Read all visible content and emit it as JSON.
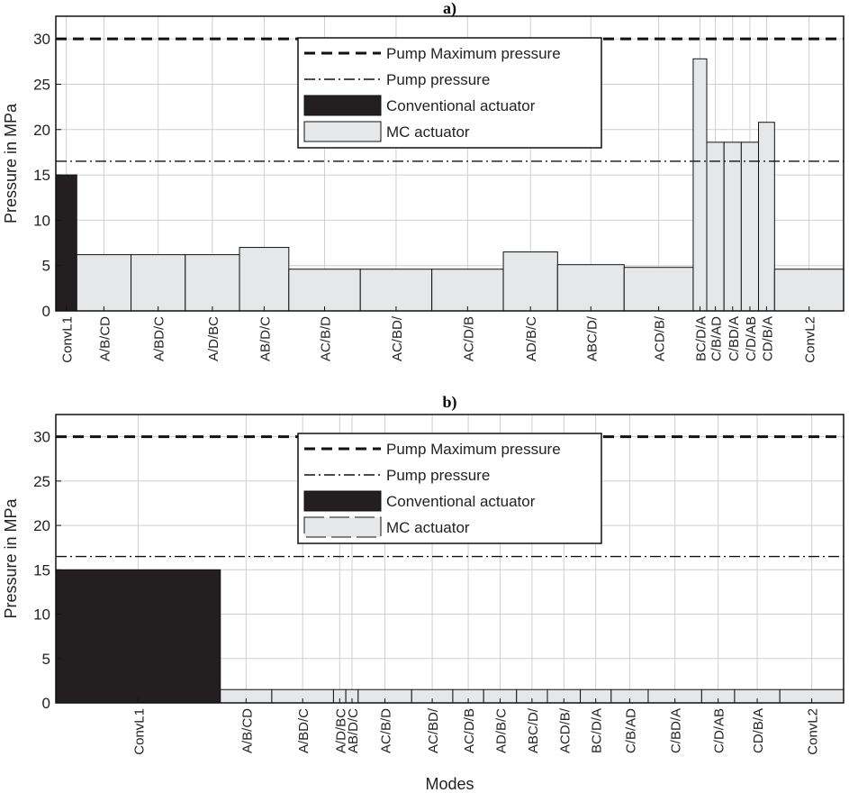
{
  "chart_data": [
    {
      "type": "bar",
      "title": "a)",
      "xlabel": "",
      "ylabel": "Pressure in MPa",
      "ylim": [
        0,
        32.5
      ],
      "yticks": [
        0,
        5,
        10,
        15,
        20,
        25,
        30
      ],
      "grid": true,
      "legend_position": "top-center",
      "reference_lines": [
        {
          "name": "Pump Maximum pressure",
          "value": 30,
          "style": "dashed"
        },
        {
          "name": "Pump pressure",
          "value": 16.5,
          "style": "dash-dot"
        }
      ],
      "legend": [
        "Pump Maximum pressure",
        "Pump pressure",
        "Conventional actuator",
        "MC actuator"
      ],
      "series": [
        {
          "name": "Conventional actuator",
          "color": "#231f20"
        },
        {
          "name": "MC actuator",
          "color": "#e6e7e8"
        }
      ],
      "bars": [
        {
          "label": "ConvL1",
          "value": 15.0,
          "width": 0.85,
          "series": "Conventional actuator"
        },
        {
          "label": "A/B/CD",
          "value": 6.2,
          "width": 2.2,
          "series": "MC actuator"
        },
        {
          "label": "A/BD/C",
          "value": 6.2,
          "width": 2.2,
          "series": "MC actuator"
        },
        {
          "label": "A/D/BC",
          "value": 6.2,
          "width": 2.2,
          "series": "MC actuator"
        },
        {
          "label": "AB/D/C",
          "value": 7.0,
          "width": 2.0,
          "series": "MC actuator"
        },
        {
          "label": "AC/B/D",
          "value": 4.6,
          "width": 2.9,
          "series": "MC actuator"
        },
        {
          "label": "AC/BD/",
          "value": 4.6,
          "width": 2.9,
          "series": "MC actuator"
        },
        {
          "label": "AC/D/B",
          "value": 4.6,
          "width": 2.9,
          "series": "MC actuator"
        },
        {
          "label": "AD/B/C",
          "value": 6.5,
          "width": 2.2,
          "series": "MC actuator"
        },
        {
          "label": "ABC/D/",
          "value": 5.1,
          "width": 2.7,
          "series": "MC actuator"
        },
        {
          "label": "ACD/B/",
          "value": 4.8,
          "width": 2.8,
          "series": "MC actuator"
        },
        {
          "label": "BC/D/A",
          "value": 27.8,
          "width": 0.55,
          "series": "MC actuator"
        },
        {
          "label": "C/B/AD",
          "value": 18.6,
          "width": 0.7,
          "series": "MC actuator"
        },
        {
          "label": "C/BD/A",
          "value": 18.6,
          "width": 0.7,
          "series": "MC actuator"
        },
        {
          "label": "C/D/AB",
          "value": 18.6,
          "width": 0.7,
          "series": "MC actuator"
        },
        {
          "label": "CD/B/A",
          "value": 20.8,
          "width": 0.65,
          "series": "MC actuator"
        },
        {
          "label": "ConvL2",
          "value": 4.6,
          "width": 2.8,
          "series": "MC actuator"
        }
      ]
    },
    {
      "type": "bar",
      "title": "b)",
      "xlabel": "Modes",
      "ylabel": "Pressure in MPa",
      "ylim": [
        0,
        32.5
      ],
      "yticks": [
        0,
        5,
        10,
        15,
        20,
        25,
        30
      ],
      "grid": true,
      "legend_position": "top-center",
      "reference_lines": [
        {
          "name": "Pump Maximum pressure",
          "value": 30,
          "style": "dashed"
        },
        {
          "name": "Pump pressure",
          "value": 16.5,
          "style": "dash-dot"
        }
      ],
      "legend": [
        "Pump Maximum pressure",
        "Pump pressure",
        "Conventional actuator",
        "MC actuator"
      ],
      "series": [
        {
          "name": "Conventional actuator",
          "color": "#231f20"
        },
        {
          "name": "MC actuator",
          "color": "#e6e7e8"
        }
      ],
      "bars": [
        {
          "label": "ConvL1",
          "value": 15.0,
          "width": 8.0,
          "series": "Conventional actuator"
        },
        {
          "label": "A/B/CD",
          "value": 1.5,
          "width": 2.5,
          "series": "MC actuator"
        },
        {
          "label": "A/BD/C",
          "value": 1.5,
          "width": 3.0,
          "series": "MC actuator"
        },
        {
          "label": "A/D/BC",
          "value": 1.5,
          "width": 0.6,
          "series": "MC actuator"
        },
        {
          "label": "AB/D/C",
          "value": 1.5,
          "width": 0.6,
          "series": "MC actuator"
        },
        {
          "label": "AC/B/D",
          "value": 1.5,
          "width": 2.6,
          "series": "MC actuator"
        },
        {
          "label": "AC/BD/",
          "value": 1.5,
          "width": 2.0,
          "series": "MC actuator"
        },
        {
          "label": "AC/D/B",
          "value": 1.5,
          "width": 1.5,
          "series": "MC actuator"
        },
        {
          "label": "AD/B/C",
          "value": 1.5,
          "width": 1.6,
          "series": "MC actuator"
        },
        {
          "label": "ABC/D/",
          "value": 1.5,
          "width": 1.5,
          "series": "MC actuator"
        },
        {
          "label": "ACD/B/",
          "value": 1.5,
          "width": 1.6,
          "series": "MC actuator"
        },
        {
          "label": "BC/D/A",
          "value": 1.5,
          "width": 1.5,
          "series": "MC actuator"
        },
        {
          "label": "C/B/AD",
          "value": 1.5,
          "width": 1.8,
          "series": "MC actuator"
        },
        {
          "label": "C/BD/A",
          "value": 1.5,
          "width": 2.6,
          "series": "MC actuator"
        },
        {
          "label": "C/D/AB",
          "value": 1.5,
          "width": 1.6,
          "series": "MC actuator"
        },
        {
          "label": "CD/B/A",
          "value": 1.5,
          "width": 2.2,
          "series": "MC actuator"
        },
        {
          "label": "ConvL2",
          "value": 1.5,
          "width": 3.1,
          "series": "MC actuator"
        }
      ]
    }
  ]
}
